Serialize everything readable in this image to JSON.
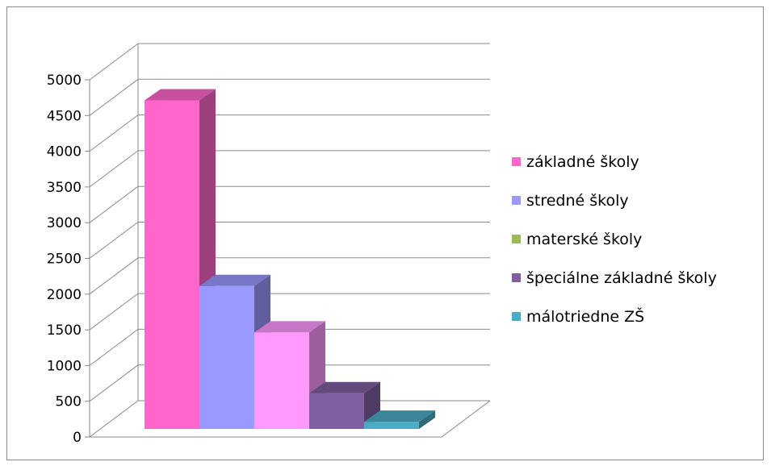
{
  "chart_data": {
    "type": "bar",
    "categories": [
      "základné školy",
      "stredné školy",
      "materské školy",
      "špeciálne základné školy",
      "málotriedne ZŠ"
    ],
    "values": [
      4600,
      2000,
      1350,
      500,
      100
    ],
    "colors": [
      "#ff66cc",
      "#9999ff",
      "#ff99ff",
      "#7f5fa0",
      "#4bacc6"
    ],
    "legend": [
      {
        "label": "základné školy",
        "color": "#ff66cc"
      },
      {
        "label": "stredné školy",
        "color": "#9999ff"
      },
      {
        "label": "materské školy",
        "color": "#9bbb59"
      },
      {
        "label": "špeciálne základné školy",
        "color": "#7f5fa0"
      },
      {
        "label": "málotriedne ZŠ",
        "color": "#4bacc6"
      }
    ],
    "yticks": [
      "0",
      "500",
      "1000",
      "1500",
      "2000",
      "2500",
      "3000",
      "3500",
      "4000",
      "4500",
      "5000"
    ],
    "ylim": [
      0,
      5000
    ],
    "grid": true,
    "legend_position": "right",
    "title": "",
    "xlabel": "",
    "ylabel": ""
  }
}
